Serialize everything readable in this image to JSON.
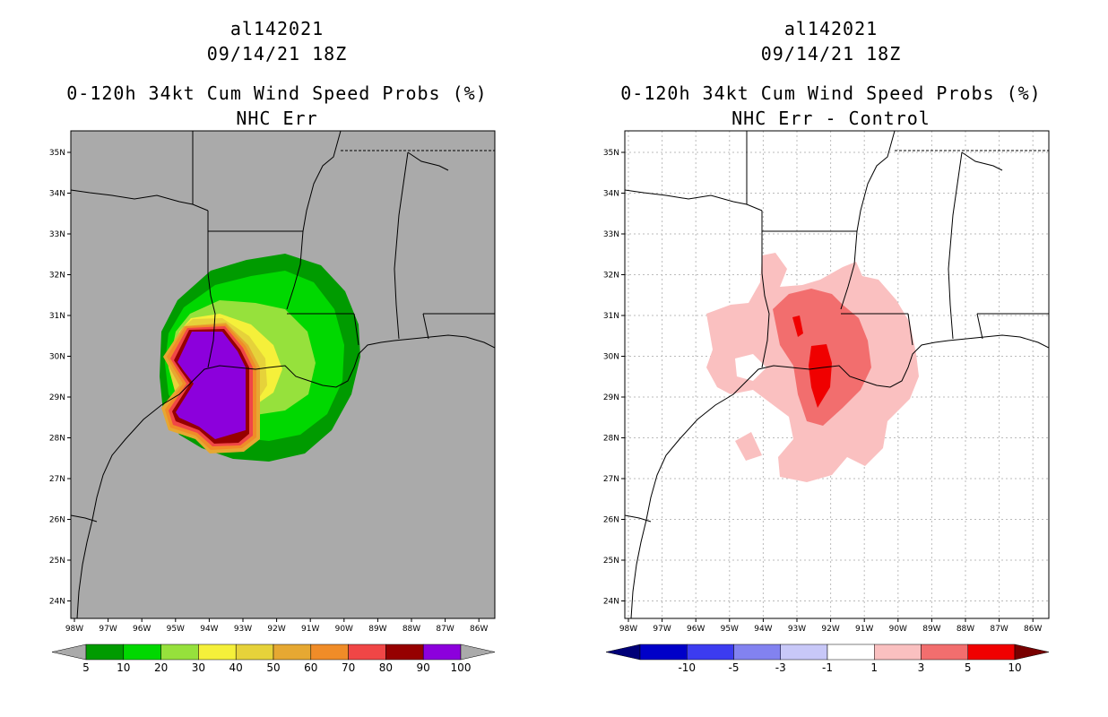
{
  "left_panel": {
    "storm_id": "al142021",
    "datetime": "09/14/21 18Z",
    "product_title": "0-120h 34kt Cum Wind Speed Probs (%)",
    "subtitle": "NHC Err",
    "colorbar": {
      "labels": [
        "5",
        "10",
        "20",
        "30",
        "40",
        "50",
        "60",
        "70",
        "80",
        "90",
        "100"
      ],
      "colors": [
        "#009b00",
        "#00d800",
        "#96e13c",
        "#f5f03a",
        "#e6d23a",
        "#e6a832",
        "#f08c28",
        "#f04646",
        "#960000",
        "#8c00dc"
      ]
    }
  },
  "right_panel": {
    "storm_id": "al142021",
    "datetime": "09/14/21 18Z",
    "product_title": "0-120h 34kt Cum Wind Speed Probs (%)",
    "subtitle": "NHC Err - Control",
    "colorbar": {
      "labels": [
        "-10",
        "-5",
        "-3",
        "-1",
        "1",
        "3",
        "5",
        "10"
      ],
      "colors": [
        "#0000c8",
        "#3c3cf0",
        "#8282f0",
        "#c8c8f8",
        "#ffffff",
        "#fac0c0",
        "#f26e6e",
        "#f00000"
      ]
    }
  },
  "axes": {
    "lat_labels": [
      "35N",
      "34N",
      "33N",
      "32N",
      "31N",
      "30N",
      "29N",
      "28N",
      "27N",
      "26N",
      "25N",
      "24N"
    ],
    "lon_labels": [
      "98W",
      "97W",
      "96W",
      "95W",
      "94W",
      "93W",
      "92W",
      "91W",
      "90W",
      "89W",
      "88W",
      "87W",
      "86W"
    ]
  },
  "colors": {
    "map_bg_left": "#aaaaaa",
    "map_bg_right": "#ffffff",
    "grid": "#bbbbbb"
  }
}
